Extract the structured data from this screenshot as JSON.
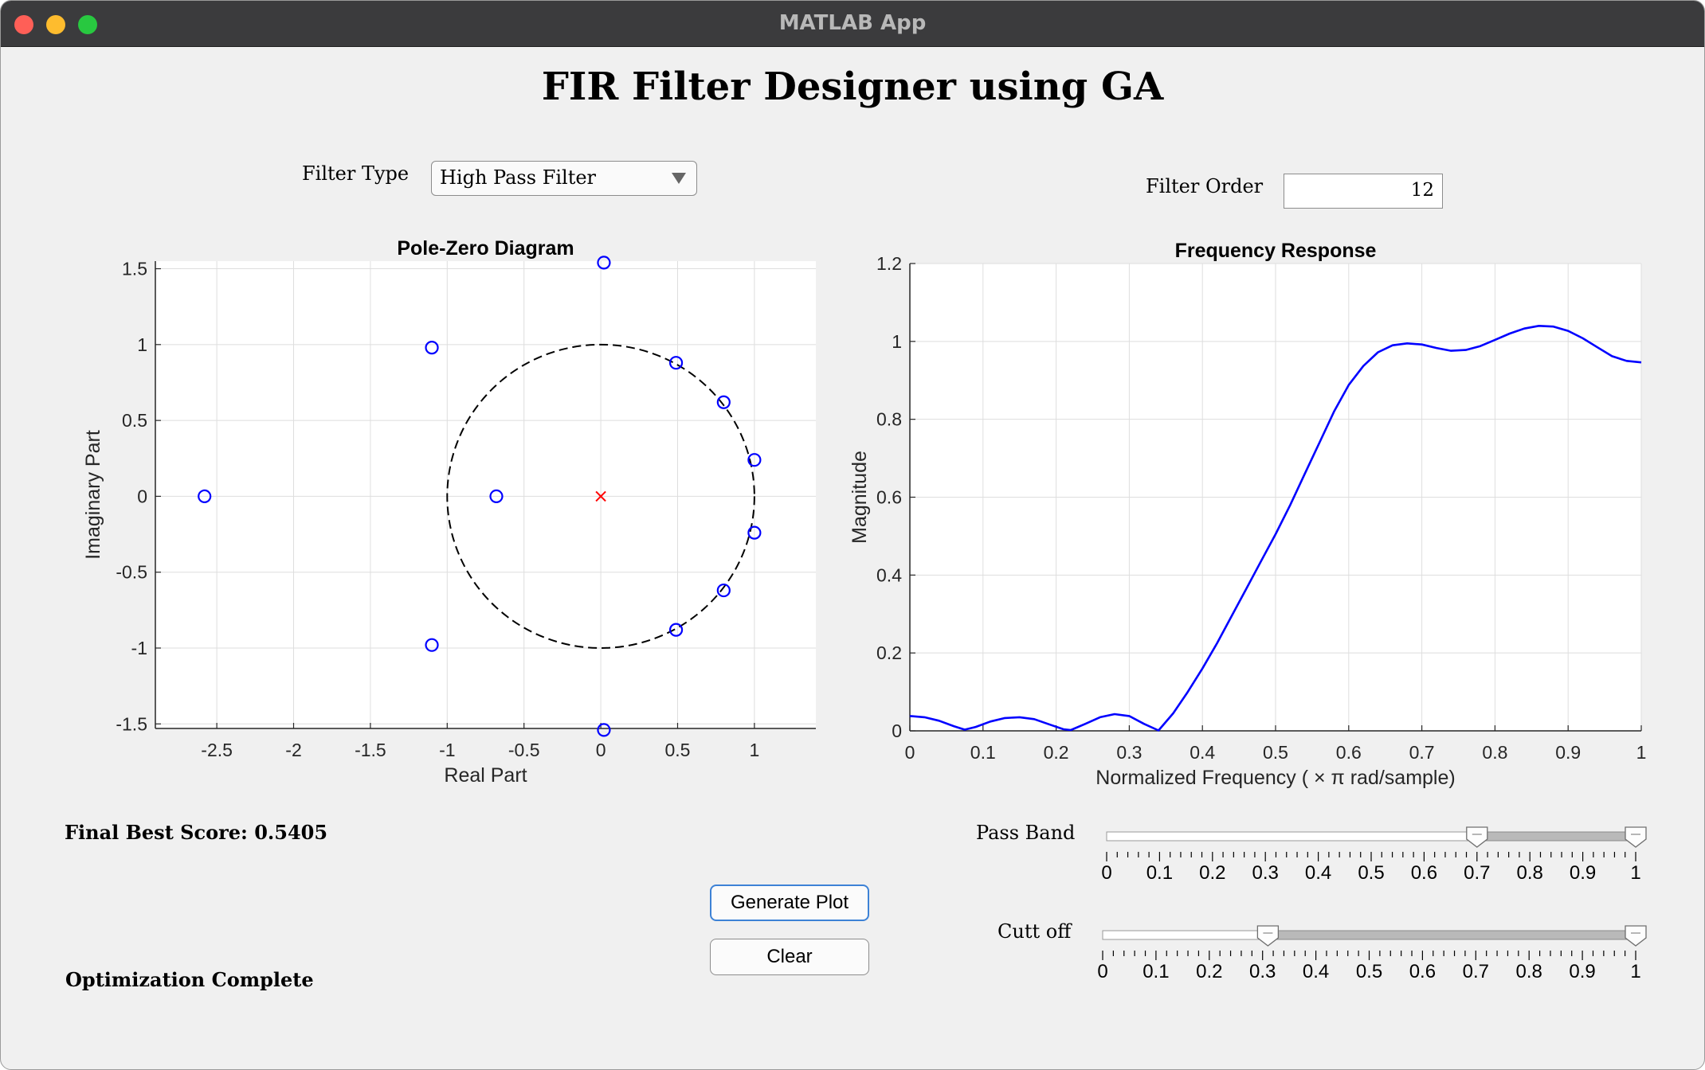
{
  "window": {
    "title": "MATLAB App"
  },
  "app_title": "FIR Filter Designer using GA",
  "filter_type": {
    "label": "Filter Type",
    "selected": "High Pass Filter"
  },
  "filter_order": {
    "label": "Filter Order",
    "value": "12"
  },
  "score_text": "Final Best Score: 0.5405",
  "status_text": "Optimization Complete",
  "buttons": {
    "generate": "Generate Plot",
    "clear": "Clear"
  },
  "sliders": [
    {
      "label": "Pass Band",
      "low": 0.7,
      "high": 1.0,
      "ticks": [
        "0",
        "0.1",
        "0.2",
        "0.3",
        "0.4",
        "0.5",
        "0.6",
        "0.7",
        "0.8",
        "0.9",
        "1"
      ]
    },
    {
      "label": "Cutt off",
      "low": 0.31,
      "high": 1.0,
      "ticks": [
        "0",
        "0.1",
        "0.2",
        "0.3",
        "0.4",
        "0.5",
        "0.6",
        "0.7",
        "0.8",
        "0.9",
        "1"
      ]
    }
  ],
  "colors": {
    "zero_marker": "#0000ff",
    "pole_marker": "#ff0000",
    "response_line": "#0000ff"
  },
  "chart_data": [
    {
      "type": "scatter",
      "title": "Pole-Zero Diagram",
      "xlabel": "Real Part",
      "ylabel": "Imaginary Part",
      "xlim": [
        -2.9,
        1.4
      ],
      "ylim": [
        -1.53,
        1.55
      ],
      "xticks": [
        "-2.5",
        "-2",
        "-1.5",
        "-1",
        "-0.5",
        "0",
        "0.5",
        "1"
      ],
      "xtick_values": [
        -2.5,
        -2,
        -1.5,
        -1,
        -0.5,
        0,
        0.5,
        1
      ],
      "yticks": [
        "1.5",
        "1",
        "0.5",
        "0",
        "-0.5",
        "-1",
        "-1.5"
      ],
      "ytick_values": [
        1.5,
        1,
        0.5,
        0,
        -0.5,
        -1,
        -1.5
      ],
      "grid": true,
      "unit_circle": true,
      "zeros": [
        [
          0.02,
          1.54
        ],
        [
          -1.1,
          0.98
        ],
        [
          0.49,
          0.88
        ],
        [
          0.8,
          0.62
        ],
        [
          1.0,
          0.24
        ],
        [
          -2.58,
          0.0
        ],
        [
          -0.68,
          0.0
        ],
        [
          1.0,
          -0.24
        ],
        [
          0.8,
          -0.62
        ],
        [
          0.49,
          -0.88
        ],
        [
          -1.1,
          -0.98
        ],
        [
          0.02,
          -1.54
        ]
      ],
      "poles": [
        [
          0,
          0
        ]
      ]
    },
    {
      "type": "line",
      "title": "Frequency Response",
      "xlabel": "Normalized  Frequency  ( × π  rad/sample)",
      "ylabel": "Magnitude",
      "xlim": [
        0,
        1
      ],
      "ylim": [
        0,
        1.2
      ],
      "xticks": [
        "0",
        "0.1",
        "0.2",
        "0.3",
        "0.4",
        "0.5",
        "0.6",
        "0.7",
        "0.8",
        "0.9",
        "1"
      ],
      "xtick_values": [
        0,
        0.1,
        0.2,
        0.3,
        0.4,
        0.5,
        0.6,
        0.7,
        0.8,
        0.9,
        1
      ],
      "yticks": [
        "1.2",
        "1",
        "0.8",
        "0.6",
        "0.4",
        "0.2",
        "0"
      ],
      "ytick_values": [
        1.2,
        1,
        0.8,
        0.6,
        0.4,
        0.2,
        0
      ],
      "grid": true,
      "x": [
        0,
        0.02,
        0.04,
        0.06,
        0.075,
        0.09,
        0.11,
        0.13,
        0.15,
        0.17,
        0.19,
        0.21,
        0.22,
        0.24,
        0.26,
        0.28,
        0.3,
        0.32,
        0.34,
        0.36,
        0.38,
        0.4,
        0.42,
        0.44,
        0.46,
        0.48,
        0.5,
        0.52,
        0.54,
        0.56,
        0.58,
        0.6,
        0.62,
        0.64,
        0.66,
        0.68,
        0.7,
        0.72,
        0.74,
        0.76,
        0.78,
        0.8,
        0.82,
        0.84,
        0.86,
        0.88,
        0.9,
        0.92,
        0.94,
        0.96,
        0.98,
        1.0
      ],
      "y": [
        0.038,
        0.035,
        0.026,
        0.012,
        0.003,
        0.01,
        0.024,
        0.033,
        0.035,
        0.03,
        0.017,
        0.004,
        0.002,
        0.018,
        0.035,
        0.043,
        0.038,
        0.018,
        0.001,
        0.045,
        0.1,
        0.16,
        0.225,
        0.295,
        0.365,
        0.435,
        0.505,
        0.58,
        0.66,
        0.74,
        0.82,
        0.888,
        0.937,
        0.972,
        0.99,
        0.995,
        0.992,
        0.983,
        0.976,
        0.978,
        0.988,
        1.004,
        1.02,
        1.033,
        1.04,
        1.038,
        1.027,
        1.008,
        0.985,
        0.962,
        0.95,
        0.946
      ]
    }
  ]
}
